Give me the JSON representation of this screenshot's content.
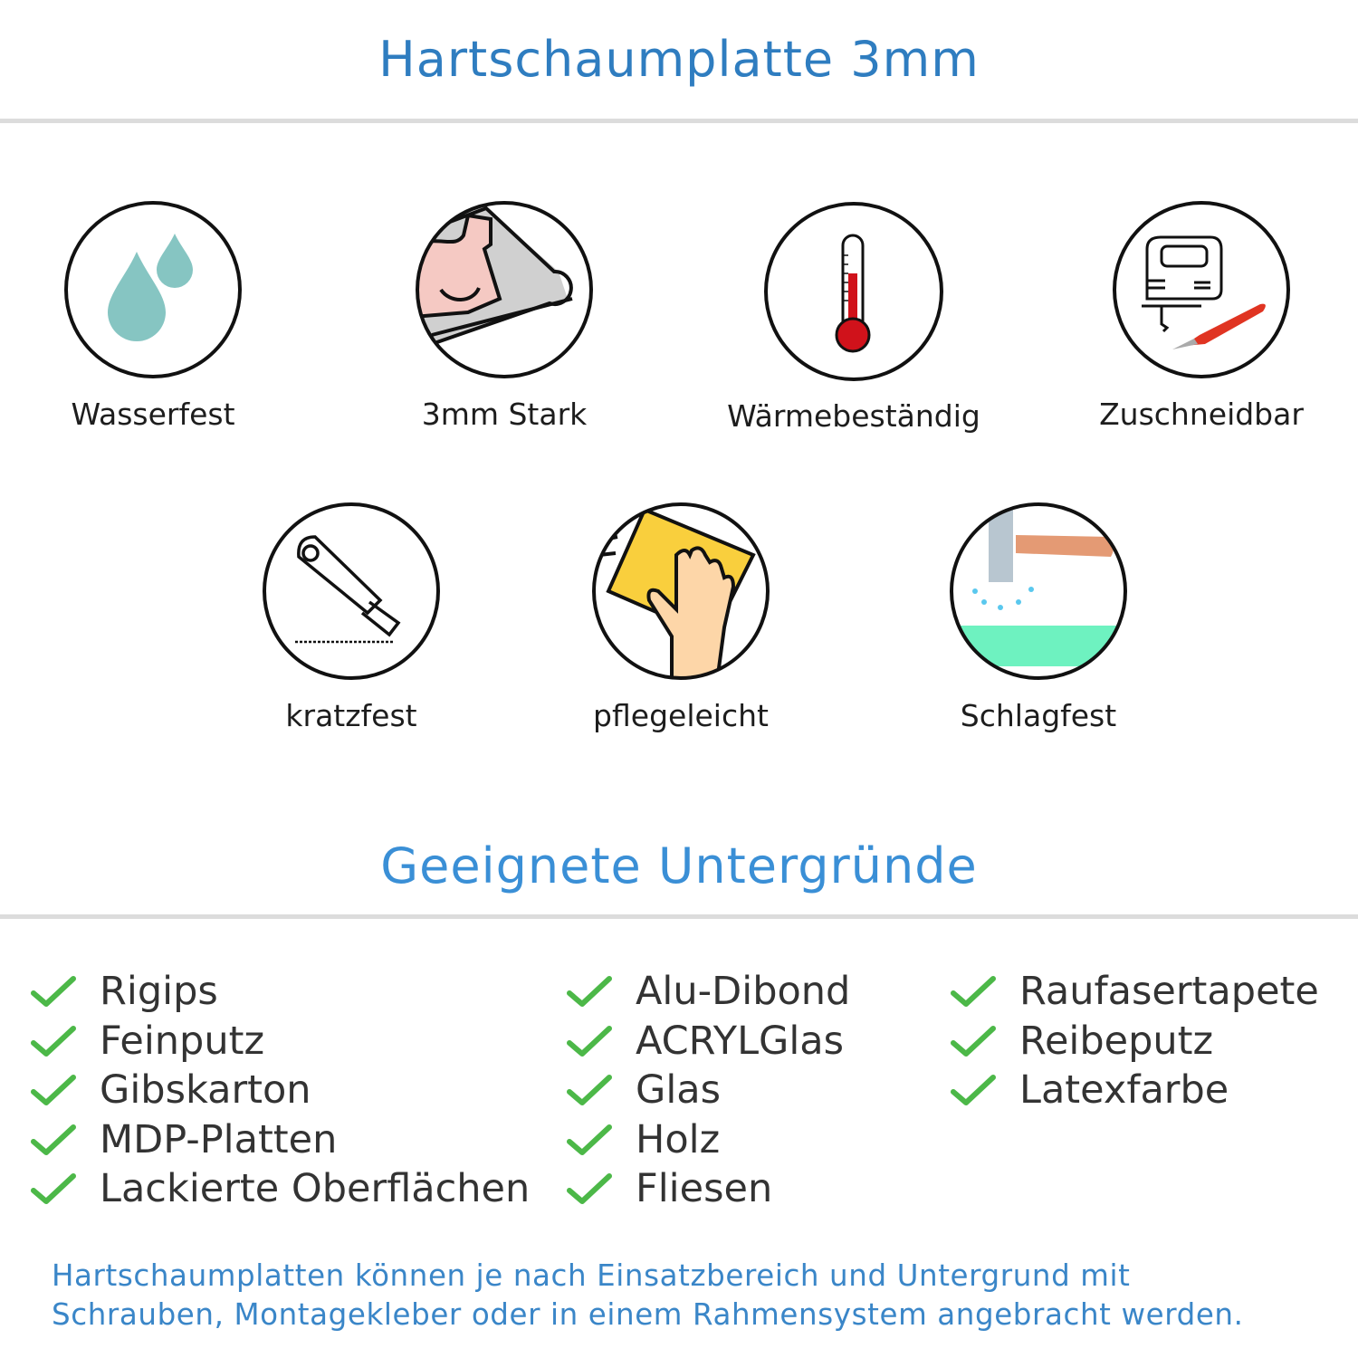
{
  "header": {
    "title": "Hartschaumplatte 3mm"
  },
  "features": [
    {
      "label": "Wasserfest",
      "icon": "water-drops-icon"
    },
    {
      "label": "3mm Stark",
      "icon": "strong-arm-icon"
    },
    {
      "label": "Wärmebeständig",
      "icon": "thermometer-icon"
    },
    {
      "label": "Zuschneidbar",
      "icon": "jigsaw-cutter-icon"
    },
    {
      "label": "kratzfest",
      "icon": "box-cutter-icon"
    },
    {
      "label": "pflegeleicht",
      "icon": "cleaning-hand-icon"
    },
    {
      "label": "Schlagfest",
      "icon": "hammer-icon"
    }
  ],
  "surfaces": {
    "title": "Geeignete Untergründe",
    "columns": [
      [
        "Rigips",
        "Feinputz",
        "Gibskarton",
        "MDP-Platten",
        "Lackierte Oberflächen"
      ],
      [
        "Alu-Dibond",
        "ACRYLGlas",
        "Glas",
        "Holz",
        "Fliesen"
      ],
      [
        "Raufasertapete",
        "Reibeputz",
        "Latexfarbe"
      ]
    ]
  },
  "footer": {
    "line1": "Hartschaumplatten können je nach Einsatzbereich und Untergrund mit",
    "line2": "Schrauben, Montagekleber oder in einem Rahmensystem angebracht werden."
  },
  "colors": {
    "title": "#2f7dc0",
    "subtitle": "#3a8fd6",
    "check": "#4cb848",
    "rule": "#dcdcdc"
  }
}
